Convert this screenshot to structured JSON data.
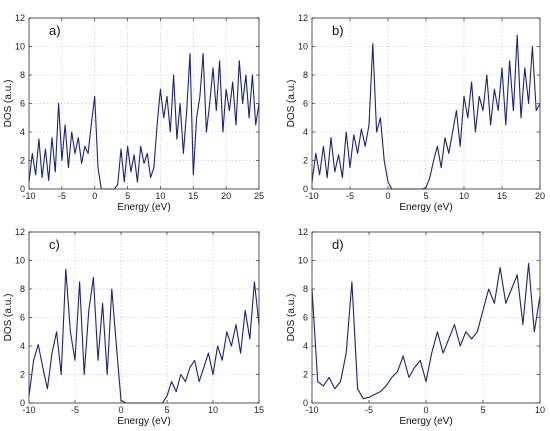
{
  "chart_data": [
    {
      "type": "line",
      "panel_label": "a)",
      "xlabel": "Energy (eV)",
      "ylabel": "DOS (a.u.)",
      "xlim": [
        -10,
        25
      ],
      "ylim": [
        0,
        12
      ],
      "xticks": [
        -10,
        -5,
        0,
        5,
        10,
        15,
        20,
        25
      ],
      "yticks": [
        0,
        2,
        4,
        6,
        8,
        10,
        12
      ],
      "grid": true,
      "color": "#1a237e",
      "x": [
        -10,
        -9.5,
        -9,
        -8.5,
        -8,
        -7.5,
        -7,
        -6.5,
        -6,
        -5.5,
        -5,
        -4.5,
        -4,
        -3.5,
        -3,
        -2.5,
        -2,
        -1.5,
        -1,
        -0.5,
        0,
        0.5,
        1,
        1.5,
        2,
        2.5,
        3,
        3.5,
        4,
        4.5,
        5,
        5.5,
        6,
        6.5,
        7,
        7.5,
        8,
        8.5,
        9,
        9.5,
        10,
        10.5,
        11,
        11.5,
        12,
        12.5,
        13,
        13.5,
        14,
        14.5,
        15,
        15.5,
        16,
        16.5,
        17,
        17.5,
        18,
        18.5,
        19,
        19.5,
        20,
        20.5,
        21,
        21.5,
        22,
        22.5,
        23,
        23.5,
        24,
        24.5,
        25
      ],
      "y": [
        0.5,
        2.5,
        1.0,
        3.5,
        0.8,
        2.8,
        0.6,
        3.6,
        1.2,
        6.0,
        2.0,
        4.5,
        1.5,
        4.0,
        2.5,
        3.6,
        1.8,
        3.0,
        2.5,
        4.6,
        6.5,
        1.5,
        0,
        0,
        0,
        0,
        0,
        0.3,
        2.8,
        0.5,
        3.0,
        1.2,
        2.4,
        0.5,
        3.0,
        1.8,
        2.5,
        0.8,
        1.5,
        4.5,
        7.0,
        5.0,
        6.5,
        4.0,
        8.0,
        3.5,
        6.0,
        2.5,
        5.5,
        9.5,
        1.0,
        5.0,
        6.5,
        9.5,
        4.0,
        6.0,
        8.5,
        5.5,
        9.0,
        4.0,
        7.0,
        5.5,
        7.5,
        4.5,
        9.0,
        6.0,
        8.0,
        5.0,
        8.0,
        4.5,
        6.0
      ]
    },
    {
      "type": "line",
      "panel_label": "b)",
      "xlabel": "Energy (eV)",
      "ylabel": "DOS (a.u.)",
      "xlim": [
        -10,
        20
      ],
      "ylim": [
        0,
        12
      ],
      "xticks": [
        -10,
        -5,
        0,
        5,
        10,
        15,
        20
      ],
      "yticks": [
        0,
        2,
        4,
        6,
        8,
        10,
        12
      ],
      "grid": true,
      "color": "#1a237e",
      "x": [
        -10,
        -9.5,
        -9,
        -8.5,
        -8,
        -7.5,
        -7,
        -6.5,
        -6,
        -5.5,
        -5,
        -4.5,
        -4,
        -3.5,
        -3,
        -2.5,
        -2,
        -1.5,
        -1,
        -0.5,
        0,
        0.5,
        1,
        1.5,
        2,
        2.5,
        3,
        3.5,
        4,
        4.5,
        5,
        5.5,
        6,
        6.5,
        7,
        7.5,
        8,
        8.5,
        9,
        9.5,
        10,
        10.5,
        11,
        11.5,
        12,
        12.5,
        13,
        13.5,
        14,
        14.5,
        15,
        15.5,
        16,
        16.5,
        17,
        17.5,
        18,
        18.5,
        19,
        19.5,
        20
      ],
      "y": [
        0.5,
        2.5,
        1.0,
        3.0,
        0.8,
        3.6,
        1.2,
        2.4,
        0.8,
        4.0,
        1.5,
        3.8,
        2.5,
        4.2,
        3.0,
        4.5,
        10.2,
        4.0,
        5.0,
        2.0,
        0.5,
        0,
        0,
        0,
        0,
        0,
        0,
        0,
        0,
        0,
        0.1,
        0.8,
        2.0,
        3.0,
        1.5,
        3.6,
        2.5,
        4.0,
        5.5,
        3.0,
        6.5,
        5.0,
        7.5,
        4.0,
        6.5,
        5.5,
        8.0,
        4.5,
        7.0,
        5.5,
        8.5,
        4.5,
        9.0,
        5.5,
        10.8,
        5.0,
        8.5,
        6.0,
        10.0,
        5.5,
        6.0
      ]
    },
    {
      "type": "line",
      "panel_label": "c)",
      "xlabel": "Energy (eV)",
      "ylabel": "DOS (a.u.)",
      "xlim": [
        -10,
        15
      ],
      "ylim": [
        0,
        12
      ],
      "xticks": [
        -10,
        -5,
        0,
        5,
        10,
        15
      ],
      "yticks": [
        0,
        2,
        4,
        6,
        8,
        10,
        12
      ],
      "grid": true,
      "color": "#1a237e",
      "x": [
        -10,
        -9.5,
        -9,
        -8.5,
        -8,
        -7.5,
        -7,
        -6.5,
        -6,
        -5.5,
        -5,
        -4.5,
        -4,
        -3.5,
        -3,
        -2.5,
        -2,
        -1.5,
        -1,
        -0.5,
        0,
        0.5,
        1,
        1.5,
        2,
        2.5,
        3,
        3.5,
        4,
        4.5,
        5,
        5.5,
        6,
        6.5,
        7,
        7.5,
        8,
        8.5,
        9,
        9.5,
        10,
        10.5,
        11,
        11.5,
        12,
        12.5,
        13,
        13.5,
        14,
        14.5,
        15
      ],
      "y": [
        0.5,
        3.0,
        4.1,
        2.5,
        1.0,
        3.5,
        5.0,
        2.0,
        9.4,
        5.0,
        3.0,
        8.5,
        2.0,
        6.5,
        8.8,
        3.0,
        7.0,
        2.0,
        8.0,
        4.0,
        0.2,
        0,
        0,
        0,
        0,
        0,
        0,
        0,
        0,
        0,
        0.5,
        1.5,
        0.8,
        2.0,
        1.5,
        2.5,
        3.0,
        1.5,
        2.5,
        3.5,
        2.0,
        4.0,
        3.0,
        5.0,
        4.0,
        5.5,
        3.5,
        6.5,
        4.5,
        8.5,
        5.5
      ]
    },
    {
      "type": "line",
      "panel_label": "d)",
      "xlabel": "Energy (eV)",
      "ylabel": "DOS (a.u.)",
      "xlim": [
        -10,
        10
      ],
      "ylim": [
        0,
        12
      ],
      "xticks": [
        -10,
        -5,
        0,
        5,
        10
      ],
      "yticks": [
        0,
        2,
        4,
        6,
        8,
        10,
        12
      ],
      "grid": true,
      "color": "#1a237e",
      "x": [
        -10,
        -9.5,
        -9,
        -8.5,
        -8,
        -7.5,
        -7,
        -6.5,
        -6,
        -5.5,
        -5,
        -4.5,
        -4,
        -3.5,
        -3,
        -2.5,
        -2,
        -1.5,
        -1,
        -0.5,
        0,
        0.5,
        1,
        1.5,
        2,
        2.5,
        3,
        3.5,
        4,
        4.5,
        5,
        5.5,
        6,
        6.5,
        7,
        7.5,
        8,
        8.5,
        9,
        9.5,
        10
      ],
      "y": [
        8.0,
        1.5,
        1.2,
        1.8,
        1.0,
        1.5,
        3.5,
        8.5,
        1.0,
        0.3,
        0.4,
        0.6,
        0.8,
        1.2,
        1.8,
        2.2,
        3.3,
        1.8,
        2.5,
        3.0,
        1.5,
        3.5,
        5.0,
        3.5,
        4.5,
        5.5,
        4.0,
        5.0,
        4.5,
        5.0,
        6.5,
        8.0,
        7.0,
        9.5,
        7.0,
        8.0,
        9.0,
        5.5,
        9.8,
        5.0,
        7.5
      ]
    }
  ]
}
